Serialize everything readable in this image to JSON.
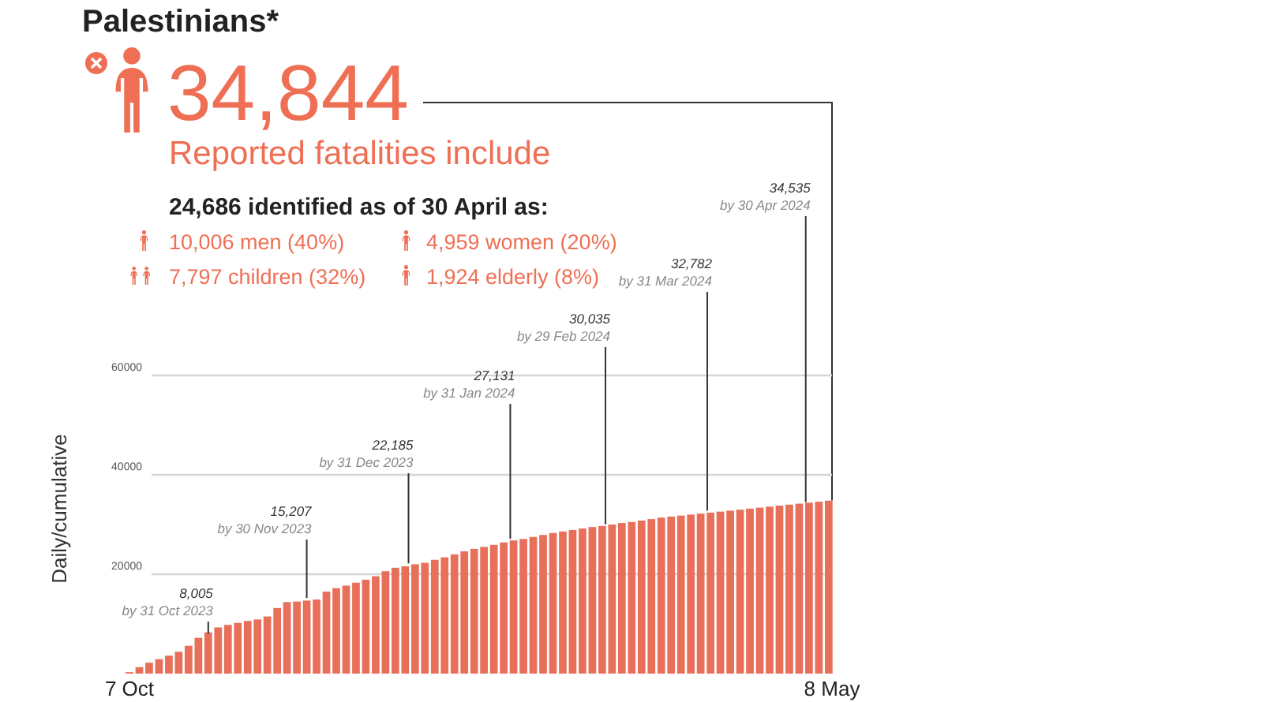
{
  "chart_data": {
    "type": "bar",
    "title": "Palestinians*",
    "ylabel": "Daily/cumulative",
    "color": "#e8705a",
    "x": [
      "2023-10-07",
      "2023-10-10",
      "2023-10-13",
      "2023-10-16",
      "2023-10-19",
      "2023-10-22",
      "2023-10-25",
      "2023-10-28",
      "2023-10-31",
      "2023-11-03",
      "2023-11-06",
      "2023-11-09",
      "2023-11-12",
      "2023-11-15",
      "2023-11-18",
      "2023-11-21",
      "2023-11-24",
      "2023-11-27",
      "2023-11-30",
      "2023-12-03",
      "2023-12-06",
      "2023-12-09",
      "2023-12-12",
      "2023-12-15",
      "2023-12-18",
      "2023-12-21",
      "2023-12-24",
      "2023-12-27",
      "2023-12-30",
      "2024-01-02",
      "2024-01-05",
      "2024-01-08",
      "2024-01-11",
      "2024-01-14",
      "2024-01-17",
      "2024-01-20",
      "2024-01-23",
      "2024-01-26",
      "2024-01-29",
      "2024-02-01",
      "2024-02-04",
      "2024-02-07",
      "2024-02-10",
      "2024-02-13",
      "2024-02-16",
      "2024-02-19",
      "2024-02-22",
      "2024-02-25",
      "2024-02-28",
      "2024-03-02",
      "2024-03-05",
      "2024-03-08",
      "2024-03-11",
      "2024-03-14",
      "2024-03-17",
      "2024-03-20",
      "2024-03-23",
      "2024-03-26",
      "2024-03-29",
      "2024-04-01",
      "2024-04-04",
      "2024-04-07",
      "2024-04-10",
      "2024-04-13",
      "2024-04-16",
      "2024-04-19",
      "2024-04-22",
      "2024-04-25",
      "2024-04-28",
      "2024-05-01",
      "2024-05-04",
      "2024-05-07"
    ],
    "values": [
      300,
      1300,
      2200,
      2900,
      3600,
      4400,
      5600,
      7200,
      8300,
      9300,
      9800,
      10200,
      10600,
      10900,
      11500,
      13200,
      14400,
      14500,
      14700,
      14900,
      16500,
      17200,
      17700,
      18300,
      18900,
      19600,
      20600,
      21300,
      21600,
      22000,
      22300,
      22900,
      23400,
      24000,
      24600,
      25100,
      25500,
      25900,
      26400,
      26800,
      27100,
      27500,
      27900,
      28300,
      28600,
      28900,
      29200,
      29500,
      29700,
      30000,
      30300,
      30500,
      30800,
      31100,
      31400,
      31600,
      31800,
      32000,
      32200,
      32400,
      32600,
      32800,
      33000,
      33200,
      33400,
      33600,
      33800,
      34000,
      34200,
      34400,
      34600,
      34800
    ],
    "xlim": [
      "2023-10-07",
      "2024-05-08"
    ],
    "xticks": [
      {
        "value": "2023-10-07",
        "label": "7 Oct"
      },
      {
        "value": "2024-05-08",
        "label": "8 May"
      }
    ],
    "ylim": [
      0,
      60000
    ],
    "yticks": [
      20000,
      40000,
      60000
    ],
    "grid": "y",
    "annotations": [
      {
        "text": "34,844",
        "x": "2024-05-08",
        "y": 34844
      },
      "Reported fatalities include",
      "24,686 identified as of 30 April as:",
      "10,006 men (40%)",
      "4,959 women (20%)",
      "7,797 children (32%)",
      "1,924 elderly (8%)",
      {
        "text": "8,005\nby 31 Oct 2023",
        "x": "2023-10-31",
        "y": 8005
      },
      {
        "text": "15,207\nby 30 Nov 2023",
        "x": "2023-11-30",
        "y": 15207
      },
      {
        "text": "22,185\nby 31 Dec 2023",
        "x": "2023-12-31",
        "y": 22185
      },
      {
        "text": "27,131\nby 31 Jan 2024",
        "x": "2024-01-31",
        "y": 27131
      },
      {
        "text": "30,035\nby 29 Feb 2024",
        "x": "2024-02-29",
        "y": 30035
      },
      {
        "text": "32,782\nby 31 Mar 2024",
        "x": "2024-03-31",
        "y": 32782
      },
      {
        "text": "34,535\nby 30 Apr 2024",
        "x": "2024-04-30",
        "y": 34535
      }
    ]
  }
}
